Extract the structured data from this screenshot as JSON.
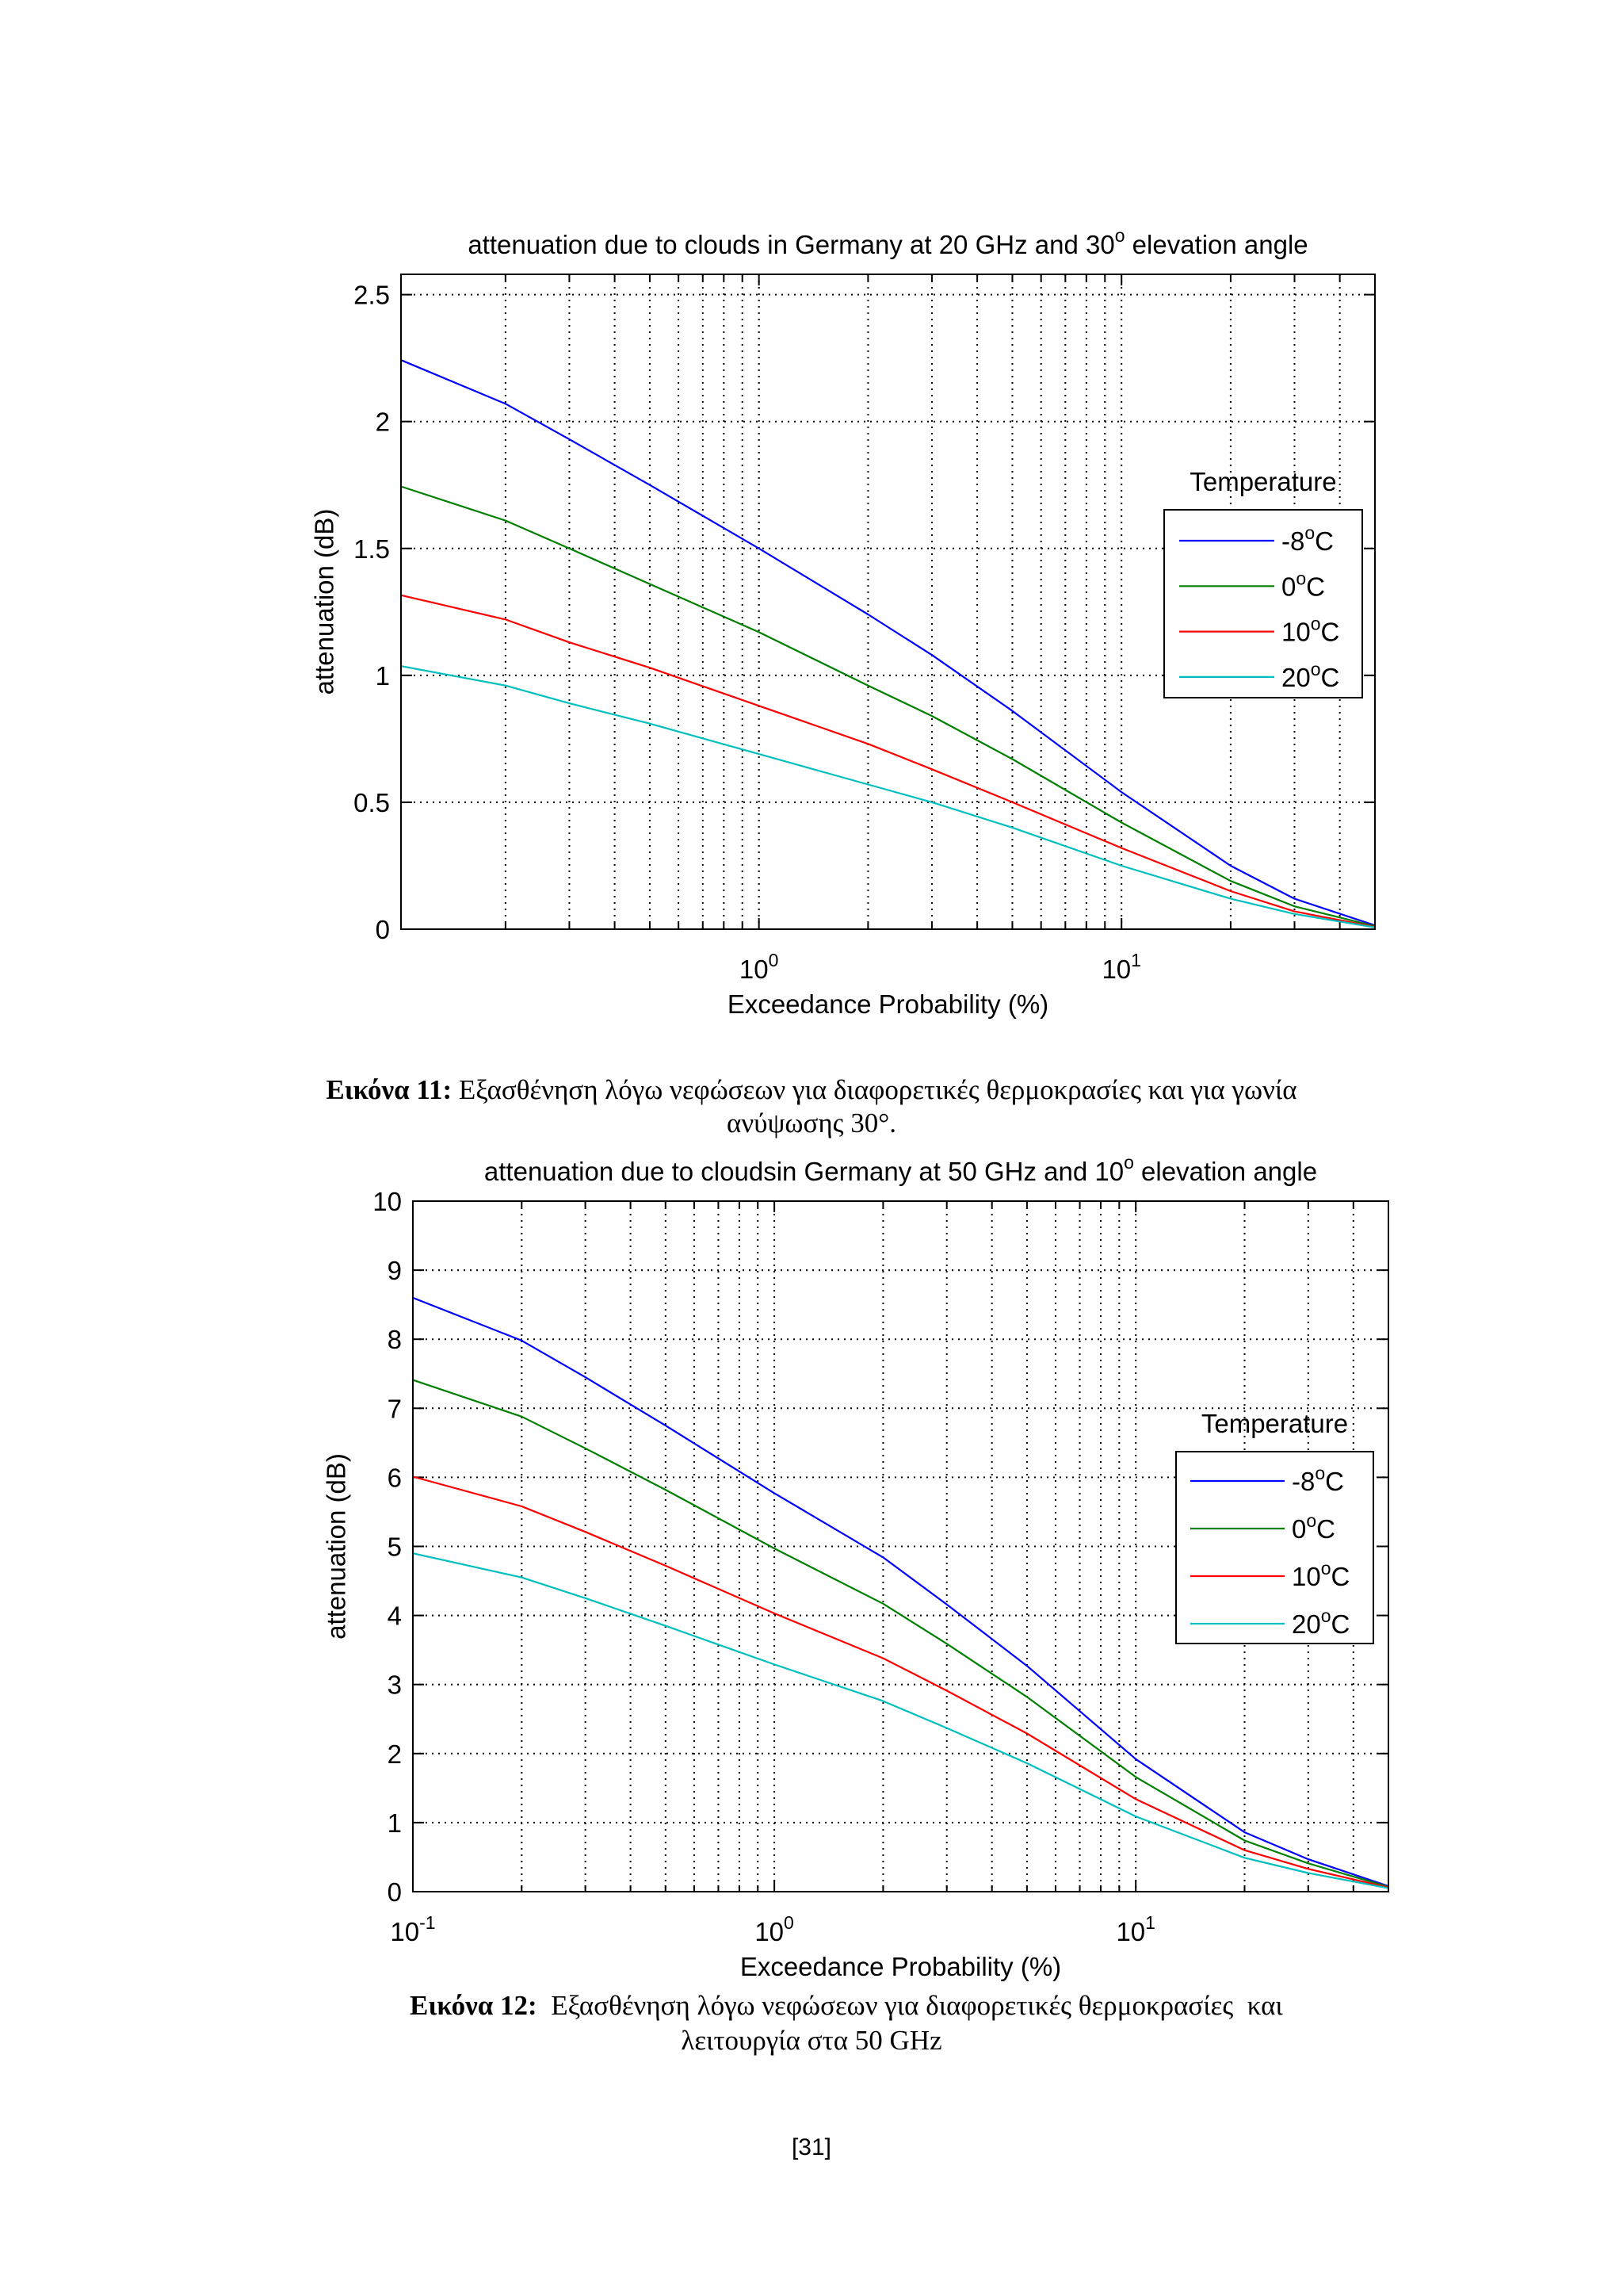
{
  "page_number": "[31]",
  "figures": [
    {
      "caption_label": "Εικόνα 11:",
      "caption_line1": " Εξασθένηση λόγω νεφώσεων για διαφορετικές θερμοκρασίες και για γωνία",
      "caption_line2": "ανύψωσης 30°."
    },
    {
      "caption_label": "Εικόνα 12:",
      "caption_line1": "  Εξασθένηση λόγω νεφώσεων για διαφορετικές θερμοκρασίες  και",
      "caption_line2": "λειτουργία στα 50 GHz"
    }
  ],
  "chart_data": [
    {
      "type": "line",
      "title": [
        "attenuation due to clouds in Germany at 20 GHz and 30",
        "o",
        " elevation angle"
      ],
      "xlabel": "Exceedance Probability (%)",
      "ylabel": "attenuation (dB)",
      "xlim": [
        0.103,
        50
      ],
      "ylim": [
        0,
        2.58
      ],
      "grid": true,
      "x_ticks": [
        {
          "value": 1,
          "base": "10",
          "exp": "0"
        },
        {
          "value": 10,
          "base": "10",
          "exp": "1"
        }
      ],
      "y_ticks": [
        {
          "value": 0,
          "label": "0"
        },
        {
          "value": 0.5,
          "label": "0.5"
        },
        {
          "value": 1,
          "label": "1"
        },
        {
          "value": 1.5,
          "label": "1.5"
        },
        {
          "value": 2,
          "label": "2"
        },
        {
          "value": 2.5,
          "label": "2.5"
        }
      ],
      "legend_title": "Temperature",
      "x": [
        0.1,
        0.2,
        0.3,
        0.5,
        1,
        2,
        3,
        5,
        10,
        20,
        30,
        50
      ],
      "series": [
        {
          "name": [
            "-8",
            "o",
            "C"
          ],
          "color": "#0000ff",
          "values": [
            2.25,
            2.07,
            1.93,
            1.75,
            1.5,
            1.24,
            1.08,
            0.86,
            0.54,
            0.25,
            0.12,
            0.015
          ]
        },
        {
          "name": [
            "0",
            "o",
            "C"
          ],
          "color": "#008000",
          "values": [
            1.75,
            1.61,
            1.5,
            1.36,
            1.17,
            0.96,
            0.84,
            0.67,
            0.42,
            0.19,
            0.09,
            0.012
          ]
        },
        {
          "name": [
            "10",
            "o",
            "C"
          ],
          "color": "#ff0000",
          "values": [
            1.32,
            1.22,
            1.13,
            1.03,
            0.88,
            0.73,
            0.63,
            0.5,
            0.32,
            0.15,
            0.07,
            0.009
          ]
        },
        {
          "name": [
            "20",
            "o",
            "C"
          ],
          "color": "#00bfbf",
          "values": [
            1.04,
            0.96,
            0.89,
            0.81,
            0.69,
            0.57,
            0.5,
            0.4,
            0.25,
            0.12,
            0.06,
            0.007
          ]
        }
      ]
    },
    {
      "type": "line",
      "title": [
        "attenuation due to cloudsin Germany at 50 GHz and 10",
        "o",
        " elevation angle"
      ],
      "xlabel": "Exceedance Probability (%)",
      "ylabel": "attenuation (dB)",
      "xlim": [
        0.1,
        50
      ],
      "ylim": [
        0,
        10
      ],
      "grid": true,
      "x_ticks": [
        {
          "value": 0.1,
          "base": "10",
          "exp": "-1"
        },
        {
          "value": 1,
          "base": "10",
          "exp": "0"
        },
        {
          "value": 10,
          "base": "10",
          "exp": "1"
        }
      ],
      "y_ticks": [
        {
          "value": 0,
          "label": "0"
        },
        {
          "value": 1,
          "label": "1"
        },
        {
          "value": 2,
          "label": "2"
        },
        {
          "value": 3,
          "label": "3"
        },
        {
          "value": 4,
          "label": "4"
        },
        {
          "value": 5,
          "label": "5"
        },
        {
          "value": 6,
          "label": "6"
        },
        {
          "value": 7,
          "label": "7"
        },
        {
          "value": 8,
          "label": "8"
        },
        {
          "value": 9,
          "label": "9"
        },
        {
          "value": 10,
          "label": "10"
        }
      ],
      "legend_title": "Temperature",
      "x": [
        0.1,
        0.2,
        0.3,
        0.5,
        1,
        2,
        3,
        5,
        10,
        20,
        30,
        50
      ],
      "series": [
        {
          "name": [
            "-8",
            "o",
            "C"
          ],
          "color": "#0000ff",
          "values": [
            8.6,
            7.98,
            7.45,
            6.75,
            5.77,
            4.84,
            4.16,
            3.27,
            1.92,
            0.86,
            0.47,
            0.08
          ]
        },
        {
          "name": [
            "0",
            "o",
            "C"
          ],
          "color": "#008000",
          "values": [
            7.41,
            6.88,
            6.42,
            5.82,
            4.97,
            4.17,
            3.59,
            2.82,
            1.66,
            0.74,
            0.41,
            0.07
          ]
        },
        {
          "name": [
            "10",
            "o",
            "C"
          ],
          "color": "#ff0000",
          "values": [
            6.01,
            5.58,
            5.21,
            4.72,
            4.03,
            3.38,
            2.91,
            2.29,
            1.34,
            0.6,
            0.33,
            0.06
          ]
        },
        {
          "name": [
            "20",
            "o",
            "C"
          ],
          "color": "#00bfbf",
          "values": [
            4.9,
            4.55,
            4.25,
            3.85,
            3.29,
            2.76,
            2.37,
            1.86,
            1.09,
            0.49,
            0.27,
            0.05
          ]
        }
      ]
    }
  ]
}
